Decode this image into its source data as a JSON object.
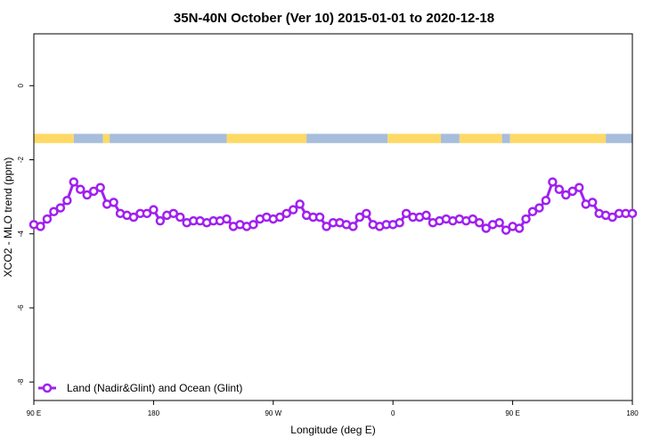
{
  "chart_data": {
    "type": "line",
    "title": "35N-40N October (Ver 10)   2015-01-01 to 2020-12-18",
    "xlabel": "Longitude (deg E)",
    "ylabel": "XCO2 - MLO trend (ppm)",
    "xlim": [
      90,
      540
    ],
    "ylim": [
      -8.5,
      1.4
    ],
    "x_ticks": [
      {
        "value": 90,
        "label": "90 E"
      },
      {
        "value": 180,
        "label": "180"
      },
      {
        "value": 270,
        "label": "90 W"
      },
      {
        "value": 360,
        "label": "0"
      },
      {
        "value": 450,
        "label": "90 E"
      },
      {
        "value": 540,
        "label": "180"
      }
    ],
    "y_ticks": [
      {
        "value": 0,
        "label": "0"
      },
      {
        "value": -2,
        "label": "-2"
      },
      {
        "value": -4,
        "label": "-4"
      },
      {
        "value": -6,
        "label": "-6"
      },
      {
        "value": -8,
        "label": "-8"
      }
    ],
    "grid": false,
    "legend": {
      "position": "bottom-left"
    },
    "series": [
      {
        "name": "Land (Nadir&Glint) and Ocean (Glint)",
        "color": "#a020f0",
        "x": [
          90,
          95,
          100,
          105,
          110,
          115,
          120,
          125,
          130,
          135,
          140,
          145,
          150,
          155,
          160,
          165,
          170,
          175,
          180,
          185,
          190,
          195,
          200,
          205,
          210,
          215,
          220,
          225,
          230,
          235,
          240,
          245,
          250,
          255,
          260,
          265,
          270,
          275,
          280,
          285,
          290,
          295,
          300,
          305,
          310,
          315,
          320,
          325,
          330,
          335,
          340,
          345,
          350,
          355,
          360,
          365,
          370,
          375,
          380,
          385,
          390,
          395,
          400,
          405,
          410,
          415,
          420,
          425,
          430,
          435,
          440,
          445,
          450,
          455,
          460,
          465,
          470,
          475,
          480,
          485,
          490,
          495,
          500,
          505,
          510,
          515,
          520,
          525,
          530,
          535,
          540
        ],
        "values": [
          -3.75,
          -3.8,
          -3.6,
          -3.4,
          -3.3,
          -3.1,
          -2.6,
          -2.8,
          -2.95,
          -2.85,
          -2.75,
          -3.2,
          -3.15,
          -3.45,
          -3.5,
          -3.55,
          -3.45,
          -3.45,
          -3.35,
          -3.65,
          -3.5,
          -3.45,
          -3.55,
          -3.7,
          -3.65,
          -3.65,
          -3.7,
          -3.65,
          -3.65,
          -3.6,
          -3.8,
          -3.75,
          -3.8,
          -3.75,
          -3.6,
          -3.55,
          -3.6,
          -3.55,
          -3.45,
          -3.35,
          -3.2,
          -3.5,
          -3.55,
          -3.55,
          -3.8,
          -3.7,
          -3.7,
          -3.75,
          -3.8,
          -3.55,
          -3.45,
          -3.75,
          -3.8,
          -3.75,
          -3.75,
          -3.7,
          -3.45,
          -3.55,
          -3.55,
          -3.5,
          -3.7,
          -3.65,
          -3.6,
          -3.65,
          -3.6,
          -3.65,
          -3.6,
          -3.7,
          -3.85,
          -3.75,
          -3.7,
          -3.9,
          -3.8,
          -3.85,
          -3.6,
          -3.4,
          -3.3,
          -3.1,
          -2.6,
          -2.8,
          -2.95,
          -2.85,
          -2.75,
          -3.2,
          -3.15,
          -3.45,
          -3.5,
          -3.55,
          -3.45,
          -3.45,
          -3.45
        ]
      }
    ],
    "surface_strip": {
      "y_top": -1.3,
      "y_bottom": -1.55,
      "land_color": "#ffd966",
      "ocean_color": "#a6bddb",
      "segments": [
        {
          "x0": 90,
          "x1": 120,
          "type": "land"
        },
        {
          "x0": 120,
          "x1": 142,
          "type": "ocean"
        },
        {
          "x0": 142,
          "x1": 147,
          "type": "land"
        },
        {
          "x0": 147,
          "x1": 235,
          "type": "ocean"
        },
        {
          "x0": 235,
          "x1": 295,
          "type": "land"
        },
        {
          "x0": 295,
          "x1": 356,
          "type": "ocean"
        },
        {
          "x0": 356,
          "x1": 396,
          "type": "land"
        },
        {
          "x0": 396,
          "x1": 410,
          "type": "ocean"
        },
        {
          "x0": 410,
          "x1": 442,
          "type": "land"
        },
        {
          "x0": 442,
          "x1": 448,
          "type": "ocean"
        },
        {
          "x0": 448,
          "x1": 520,
          "type": "land"
        },
        {
          "x0": 520,
          "x1": 540,
          "type": "ocean"
        }
      ]
    }
  }
}
